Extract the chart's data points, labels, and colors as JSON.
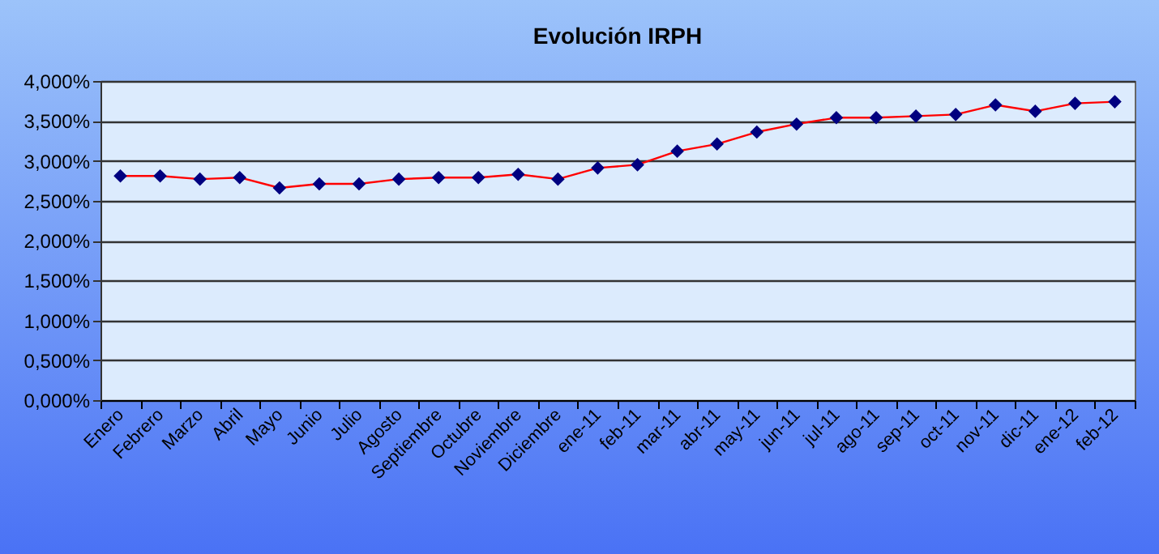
{
  "chart_data": {
    "type": "line",
    "title": "Evolución IRPH",
    "categories": [
      "Enero",
      "Febrero",
      "Marzo",
      "Abril",
      "Mayo",
      "Junio",
      "Julio",
      "Agosto",
      "Septiembre",
      "Octubre",
      "Noviembre",
      "Diciembre",
      "ene-11",
      "feb-11",
      "mar-11",
      "abr-11",
      "may-11",
      "jun-11",
      "jul-11",
      "ago-11",
      "sep-11",
      "oct-11",
      "nov-11",
      "dic-11",
      "ene-12",
      "feb-12"
    ],
    "series": [
      {
        "color": "#ff0000",
        "values": [
          2.81,
          2.81,
          2.77,
          2.79,
          2.66,
          2.71,
          2.71,
          2.77,
          2.79,
          2.79,
          2.83,
          2.77,
          2.91,
          2.95,
          3.12,
          3.21,
          3.36,
          3.46,
          3.54,
          3.54,
          3.56,
          3.58,
          3.7,
          3.62,
          3.72,
          3.74
        ]
      }
    ],
    "ylim": [
      0,
      4
    ],
    "yticks": [
      {
        "value": 0,
        "label": "0,000%"
      },
      {
        "value": 0.5,
        "label": "0,500%"
      },
      {
        "value": 1,
        "label": "1,000%"
      },
      {
        "value": 1.5,
        "label": "1,500%"
      },
      {
        "value": 2,
        "label": "2,000%"
      },
      {
        "value": 2.5,
        "label": "2,500%"
      },
      {
        "value": 3,
        "label": "3,000%"
      },
      {
        "value": 3.5,
        "label": "3,500%"
      },
      {
        "value": 4,
        "label": "4,000%"
      }
    ],
    "grid": "y",
    "marker": "diamond",
    "line_style": "solid"
  }
}
